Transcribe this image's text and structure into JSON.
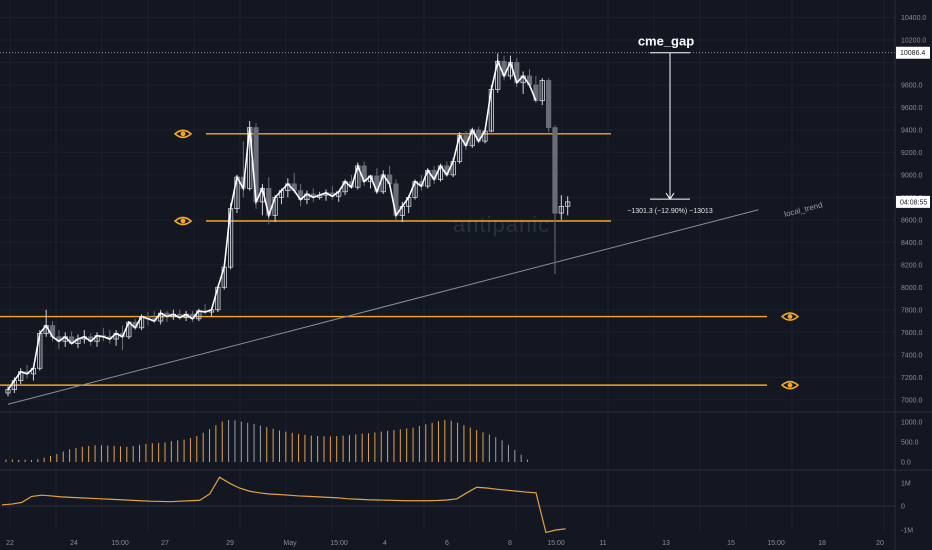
{
  "watermark": "antipanic",
  "colors": {
    "background": "#131722",
    "level": "#f5a623",
    "candle_up": "#d1d4dc",
    "candle_down": "#6a6d78",
    "price_line": "#ffffff",
    "volume": "#e0a24a",
    "oscillator": "#e6a23c",
    "trendline": "#8a8e99"
  },
  "chart_data": {
    "type": "candlestick",
    "price_axis": {
      "ticks": [
        "10400.0",
        "10200.0",
        "9800.0",
        "9600.0",
        "9400.0",
        "9200.0",
        "9000.0",
        "8800.0",
        "8600.0",
        "8400.0",
        "8200.0",
        "8000.0",
        "7800.0",
        "7600.0",
        "7400.0",
        "7200.0",
        "7000.0"
      ],
      "range": [
        6860,
        10500
      ]
    },
    "time_axis": {
      "ticks": [
        "22",
        "24",
        "15:00",
        "27",
        "29",
        "May",
        "15:00",
        "4",
        "6",
        "8",
        "15:00",
        "11",
        "13",
        "15",
        "15:00",
        "18",
        "20"
      ]
    },
    "current_price_label": "10086.4",
    "countdown_label": "04:08:55",
    "levels": [
      {
        "price": 9365,
        "icon": "eye-icon"
      },
      {
        "price": 8590,
        "icon": "eye-icon"
      },
      {
        "price": 7740,
        "icon": "eye-icon"
      },
      {
        "price": 7130,
        "icon": "eye-icon"
      }
    ],
    "gap_annotation": {
      "title": "cme_gap",
      "from_price": 10086.4,
      "to_price": 8785,
      "measure_label": "−1301.3 (−12.90%) −13013"
    },
    "trendline": {
      "label": "local_trend",
      "from": [
        0,
        6960
      ],
      "to": [
        118,
        8690
      ]
    },
    "candles": [
      [
        7060,
        7120,
        7030,
        7090
      ],
      [
        7090,
        7200,
        7060,
        7170
      ],
      [
        7170,
        7280,
        7140,
        7250
      ],
      [
        7250,
        7310,
        7190,
        7230
      ],
      [
        7230,
        7300,
        7170,
        7280
      ],
      [
        7280,
        7620,
        7260,
        7590
      ],
      [
        7590,
        7800,
        7560,
        7660
      ],
      [
        7660,
        7700,
        7520,
        7560
      ],
      [
        7560,
        7620,
        7450,
        7520
      ],
      [
        7520,
        7600,
        7470,
        7560
      ],
      [
        7560,
        7610,
        7490,
        7500
      ],
      [
        7500,
        7580,
        7460,
        7540
      ],
      [
        7540,
        7620,
        7500,
        7560
      ],
      [
        7560,
        7590,
        7480,
        7520
      ],
      [
        7520,
        7600,
        7470,
        7570
      ],
      [
        7570,
        7640,
        7520,
        7560
      ],
      [
        7560,
        7620,
        7500,
        7540
      ],
      [
        7540,
        7620,
        7480,
        7590
      ],
      [
        7590,
        7660,
        7440,
        7560
      ],
      [
        7560,
        7700,
        7540,
        7690
      ],
      [
        7690,
        7720,
        7620,
        7640
      ],
      [
        7640,
        7760,
        7620,
        7740
      ],
      [
        7740,
        7780,
        7660,
        7720
      ],
      [
        7720,
        7790,
        7680,
        7700
      ],
      [
        7700,
        7800,
        7670,
        7770
      ],
      [
        7770,
        7790,
        7690,
        7740
      ],
      [
        7740,
        7800,
        7710,
        7760
      ],
      [
        7760,
        7800,
        7710,
        7730
      ],
      [
        7730,
        7790,
        7700,
        7760
      ],
      [
        7760,
        7790,
        7690,
        7720
      ],
      [
        7720,
        7810,
        7700,
        7790
      ],
      [
        7790,
        7850,
        7760,
        7780
      ],
      [
        7780,
        7820,
        7740,
        7800
      ],
      [
        7800,
        8020,
        7780,
        8000
      ],
      [
        8000,
        8210,
        7980,
        8180
      ],
      [
        8180,
        8750,
        8160,
        8700
      ],
      [
        8700,
        9000,
        8660,
        8980
      ],
      [
        8980,
        9300,
        8800,
        8880
      ],
      [
        8880,
        9480,
        8860,
        9420
      ],
      [
        9420,
        9460,
        8700,
        8760
      ],
      [
        8760,
        8920,
        8640,
        8880
      ],
      [
        8880,
        8980,
        8560,
        8640
      ],
      [
        8640,
        8820,
        8580,
        8800
      ],
      [
        8800,
        8880,
        8740,
        8860
      ],
      [
        8860,
        8970,
        8800,
        8920
      ],
      [
        8920,
        9020,
        8840,
        8860
      ],
      [
        8860,
        8920,
        8720,
        8780
      ],
      [
        8780,
        8860,
        8740,
        8830
      ],
      [
        8830,
        8880,
        8760,
        8800
      ],
      [
        8800,
        8850,
        8780,
        8820
      ],
      [
        8820,
        8870,
        8770,
        8840
      ],
      [
        8840,
        8900,
        8780,
        8810
      ],
      [
        8810,
        8860,
        8760,
        8850
      ],
      [
        8850,
        8960,
        8820,
        8940
      ],
      [
        8940,
        9000,
        8880,
        8890
      ],
      [
        8890,
        9110,
        8870,
        9080
      ],
      [
        9080,
        9120,
        8900,
        8940
      ],
      [
        8940,
        9000,
        8880,
        8990
      ],
      [
        8990,
        9060,
        8830,
        8850
      ],
      [
        8850,
        9040,
        8830,
        9000
      ],
      [
        9000,
        9080,
        8900,
        8920
      ],
      [
        8920,
        8960,
        8600,
        8640
      ],
      [
        8640,
        8760,
        8580,
        8720
      ],
      [
        8720,
        8820,
        8660,
        8800
      ],
      [
        8800,
        8960,
        8780,
        8940
      ],
      [
        8940,
        9000,
        8860,
        8900
      ],
      [
        8900,
        9060,
        8880,
        9040
      ],
      [
        9040,
        9080,
        8920,
        8960
      ],
      [
        8960,
        9100,
        8940,
        9080
      ],
      [
        9080,
        9120,
        8980,
        9000
      ],
      [
        9000,
        9150,
        8980,
        9120
      ],
      [
        9120,
        9380,
        9100,
        9350
      ],
      [
        9350,
        9390,
        9220,
        9260
      ],
      [
        9260,
        9420,
        9240,
        9400
      ],
      [
        9400,
        9430,
        9280,
        9300
      ],
      [
        9300,
        9420,
        9280,
        9390
      ],
      [
        9390,
        9800,
        9380,
        9760
      ],
      [
        9760,
        10080,
        9730,
        10010
      ],
      [
        10010,
        10060,
        9840,
        9880
      ],
      [
        9880,
        10060,
        9850,
        10000
      ],
      [
        10000,
        10040,
        9780,
        9820
      ],
      [
        9820,
        9920,
        9720,
        9880
      ],
      [
        9880,
        9940,
        9780,
        9800
      ],
      [
        9800,
        9880,
        9640,
        9660
      ],
      [
        9660,
        9860,
        9620,
        9840
      ],
      [
        9840,
        9860,
        9380,
        9420
      ],
      [
        9420,
        9440,
        8120,
        8660
      ],
      [
        8660,
        8820,
        8600,
        8720
      ],
      [
        8720,
        8810,
        8640,
        8760
      ]
    ],
    "volume": {
      "ticks": [
        "1000.0",
        "500.0",
        "0.0"
      ],
      "values": [
        60,
        60,
        55,
        60,
        50,
        70,
        110,
        150,
        200,
        260,
        320,
        350,
        380,
        400,
        420,
        420,
        410,
        400,
        390,
        380,
        400,
        430,
        450,
        470,
        480,
        490,
        520,
        540,
        560,
        600,
        650,
        730,
        820,
        920,
        1010,
        1050,
        1040,
        1010,
        980,
        950,
        910,
        870,
        830,
        790,
        760,
        730,
        700,
        680,
        660,
        650,
        640,
        640,
        650,
        660,
        670,
        690,
        710,
        720,
        740,
        760,
        780,
        800,
        820,
        840,
        860,
        900,
        940,
        980,
        1020,
        1050,
        1030,
        980,
        920,
        860,
        800,
        740,
        690,
        620,
        540,
        430,
        300,
        180,
        60
      ]
    },
    "oscillator": {
      "ticks": [
        "1M",
        "0",
        "-1M"
      ],
      "values": [
        0.05,
        0.08,
        0.15,
        0.4,
        0.45,
        0.42,
        0.38,
        0.36,
        0.34,
        0.32,
        0.3,
        0.28,
        0.26,
        0.24,
        0.22,
        0.2,
        0.19,
        0.18,
        0.2,
        0.22,
        0.24,
        0.5,
        1.2,
        0.95,
        0.75,
        0.62,
        0.55,
        0.5,
        0.48,
        0.45,
        0.42,
        0.4,
        0.38,
        0.36,
        0.34,
        0.3,
        0.28,
        0.26,
        0.25,
        0.24,
        0.23,
        0.22,
        0.22,
        0.22,
        0.23,
        0.25,
        0.3,
        0.55,
        0.78,
        0.75,
        0.7,
        0.66,
        0.62,
        0.58,
        0.55,
        -1.1,
        -1.0,
        -0.95
      ]
    }
  }
}
